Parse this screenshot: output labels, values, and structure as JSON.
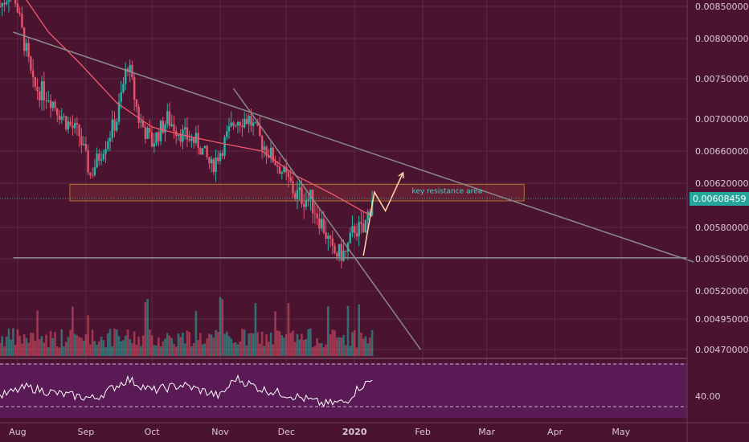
{
  "colors": {
    "background": "#4a1430",
    "panel_border": "#6a3a55",
    "grid": "#5a2a45",
    "up": "#26b5a6",
    "down": "#e5536b",
    "ma": "#f05a6e",
    "trend": "#8a8a8a",
    "zone_fill": "#7a2a35",
    "zone_stroke": "#b07030",
    "arrow": "#ffd9a8",
    "rsi_bg": "#5a1a55",
    "rsi_line": "#ffffff",
    "current": "#26a69a"
  },
  "axis": {
    "price_ticks": [
      "0.00850000",
      "0.00800000",
      "0.00750000",
      "0.00700000",
      "0.00660000",
      "0.00620000",
      "0.00580000",
      "0.00550000",
      "0.00520000",
      "0.00495000",
      "0.00470000"
    ],
    "current_price": "0.00608459",
    "rsi_tick": "40.00",
    "months": [
      "Aug",
      "Sep",
      "Oct",
      "Nov",
      "Dec",
      "2020",
      "Feb",
      "Mar",
      "Apr",
      "May"
    ]
  },
  "annotation": {
    "zone_label": "key resistance area"
  },
  "chart_data": {
    "type": "candlestick",
    "x_range": [
      "2019-07-24",
      "2020-05-31"
    ],
    "y_range": [
      0.0046,
      0.0087
    ],
    "current_price": 0.00608459,
    "resistance_zone": [
      0.00604,
      0.00619
    ],
    "support_line": 0.00551,
    "price_path": [
      [
        "2019-07-24",
        0.0085
      ],
      [
        "2019-07-30",
        0.0088
      ],
      [
        "2019-08-03",
        0.0081
      ],
      [
        "2019-08-08",
        0.0074
      ],
      [
        "2019-08-15",
        0.0073
      ],
      [
        "2019-08-22",
        0.007
      ],
      [
        "2019-08-29",
        0.0068
      ],
      [
        "2019-09-03",
        0.0063
      ],
      [
        "2019-09-08",
        0.0066
      ],
      [
        "2019-09-15",
        0.007
      ],
      [
        "2019-09-20",
        0.0077
      ],
      [
        "2019-09-25",
        0.007
      ],
      [
        "2019-10-01",
        0.0067
      ],
      [
        "2019-10-08",
        0.007
      ],
      [
        "2019-10-15",
        0.0068
      ],
      [
        "2019-10-22",
        0.0067
      ],
      [
        "2019-10-28",
        0.0064
      ],
      [
        "2019-11-01",
        0.0066
      ],
      [
        "2019-11-08",
        0.007
      ],
      [
        "2019-11-14",
        0.007
      ],
      [
        "2019-11-20",
        0.0067
      ],
      [
        "2019-11-28",
        0.0064
      ],
      [
        "2019-12-05",
        0.0061
      ],
      [
        "2019-12-12",
        0.00605
      ],
      [
        "2019-12-18",
        0.0058
      ],
      [
        "2019-12-22",
        0.00555
      ],
      [
        "2019-12-28",
        0.00555
      ],
      [
        "2020-01-01",
        0.0058
      ],
      [
        "2020-01-05",
        0.00575
      ],
      [
        "2020-01-09",
        0.00608
      ]
    ],
    "moving_average": [
      [
        "2019-08-03",
        0.0087
      ],
      [
        "2019-08-15",
        0.0081
      ],
      [
        "2019-08-29",
        0.0077
      ],
      [
        "2019-09-15",
        0.0072
      ],
      [
        "2019-10-01",
        0.0069
      ],
      [
        "2019-10-15",
        0.0068
      ],
      [
        "2019-11-01",
        0.0067
      ],
      [
        "2019-11-20",
        0.0066
      ],
      [
        "2019-12-05",
        0.0063
      ],
      [
        "2019-12-22",
        0.0061
      ],
      [
        "2020-01-09",
        0.0059
      ]
    ],
    "trendlines": [
      {
        "from": [
          "2019-07-30",
          0.0081
        ],
        "to": [
          "2020-06-03",
          0.00547
        ]
      },
      {
        "from": [
          "2019-11-07",
          0.00738
        ],
        "to": [
          "2020-01-31",
          0.0047
        ]
      }
    ],
    "projection": [
      [
        "2020-01-05",
        0.00553
      ],
      [
        "2020-01-10",
        0.00612
      ],
      [
        "2020-01-15",
        0.00595
      ],
      [
        "2020-01-23",
        0.00633
      ]
    ],
    "rsi_level": 40.0,
    "rsi_path": [
      [
        "2019-07-24",
        40
      ],
      [
        "2019-08-05",
        48
      ],
      [
        "2019-08-20",
        42
      ],
      [
        "2019-09-05",
        38
      ],
      [
        "2019-09-20",
        55
      ],
      [
        "2019-10-01",
        45
      ],
      [
        "2019-10-15",
        50
      ],
      [
        "2019-11-01",
        40
      ],
      [
        "2019-11-08",
        56
      ],
      [
        "2019-11-20",
        46
      ],
      [
        "2019-12-05",
        40
      ],
      [
        "2019-12-18",
        33
      ],
      [
        "2019-12-28",
        35
      ],
      [
        "2020-01-03",
        48
      ],
      [
        "2020-01-09",
        54
      ]
    ]
  }
}
